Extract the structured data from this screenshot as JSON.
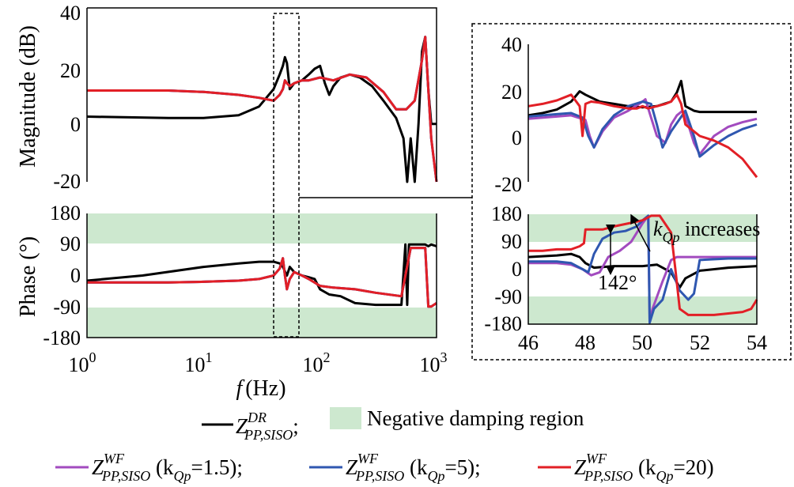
{
  "colors": {
    "dr": "#000000",
    "wf_1_5": "#a24bbf",
    "wf_5": "#2f57b0",
    "wf_20": "#e21f26",
    "negative_damping": "#cde8cf"
  },
  "labels": {
    "mag_ylabel": "Magnitude (dB)",
    "phase_ylabel": "Phase (°)",
    "xlabel_f": "f",
    "xlabel_unit": "(Hz)",
    "arrow_text_k": "k",
    "arrow_text_sub": "Qp",
    "arrow_text_rest": " increases",
    "phase_jump": "142°"
  },
  "ticks": {
    "mag_y": [
      "40",
      "20",
      "0",
      "-20"
    ],
    "phase_y": [
      "180",
      "90",
      "0",
      "-90",
      "-180"
    ],
    "x_main": [
      {
        "base": "10",
        "exp": "0"
      },
      {
        "base": "10",
        "exp": "1"
      },
      {
        "base": "10",
        "exp": "2"
      },
      {
        "base": "10",
        "exp": "3"
      }
    ],
    "x_zoom": [
      "46",
      "48",
      "50",
      "52",
      "54"
    ]
  },
  "legend": {
    "dr": {
      "main": "Z",
      "sup": "DR",
      "sub": "PP,SISO",
      "after": ";"
    },
    "region": "Negative damping region",
    "wf": [
      {
        "main": "Z",
        "sup": "WF",
        "sub": "PP,SISO",
        "p1": " (k",
        "psub": "Qp",
        "p2": "=1.5);"
      },
      {
        "main": "Z",
        "sup": "WF",
        "sub": "PP,SISO",
        "p1": " (k",
        "psub": "Qp",
        "p2": "=5);"
      },
      {
        "main": "Z",
        "sup": "WF",
        "sub": "PP,SISO",
        "p1": " (k",
        "psub": "Qp",
        "p2": "=20)"
      }
    ]
  },
  "chart_data": [
    {
      "type": "line",
      "panel": "magnitude",
      "xscale": "log",
      "xlim": [
        1,
        1000
      ],
      "ylim": [
        -20,
        40
      ],
      "ylabel": "Magnitude (dB)",
      "series": [
        {
          "key": "dr",
          "x": [
            1,
            5,
            10,
            20,
            30,
            40,
            45,
            48,
            50,
            52,
            55,
            60,
            70,
            80,
            90,
            100,
            110,
            120,
            130,
            150,
            180,
            220,
            280,
            350,
            450,
            520,
            560,
            600,
            650,
            700,
            750,
            800,
            850,
            900,
            1000
          ],
          "y": [
            2.5,
            2,
            2,
            3,
            6,
            12,
            17,
            20,
            23,
            21,
            12,
            14,
            15,
            17,
            19,
            20,
            14,
            10,
            13,
            16,
            17,
            16,
            13,
            8,
            2,
            -5,
            -20,
            -5,
            -20,
            0,
            25,
            30,
            12,
            0,
            0
          ]
        },
        {
          "key": "wf_1_5",
          "x": [
            1,
            5,
            10,
            20,
            30,
            40,
            45,
            48,
            50,
            52,
            55,
            60,
            70,
            80,
            100,
            130,
            180,
            250,
            350,
            450,
            550,
            650,
            750,
            800,
            850,
            900,
            1000
          ],
          "y": [
            11.5,
            11.5,
            11,
            10,
            9,
            8,
            10,
            12,
            15,
            14,
            13,
            14,
            15,
            15,
            16,
            15,
            17,
            16,
            11,
            5,
            5,
            8,
            22,
            30,
            12,
            -5,
            -20
          ]
        },
        {
          "key": "wf_5",
          "x": [
            1,
            5,
            10,
            20,
            30,
            40,
            45,
            48,
            50,
            52,
            55,
            60,
            70,
            80,
            100,
            130,
            180,
            250,
            350,
            450,
            550,
            650,
            750,
            800,
            850,
            900,
            1000
          ],
          "y": [
            11.5,
            11.5,
            11,
            10,
            9,
            8,
            10,
            12,
            15,
            14,
            13,
            14,
            15,
            15,
            16,
            15,
            17,
            16,
            11,
            5,
            5,
            8,
            22,
            30,
            12,
            -5,
            -20
          ]
        },
        {
          "key": "wf_20",
          "x": [
            1,
            5,
            10,
            20,
            30,
            40,
            45,
            48,
            50,
            52,
            55,
            60,
            70,
            80,
            100,
            130,
            180,
            250,
            350,
            450,
            550,
            650,
            750,
            800,
            850,
            900,
            1000
          ],
          "y": [
            11.5,
            11.5,
            11,
            10,
            9,
            8,
            10,
            12,
            15,
            14,
            13,
            14,
            15,
            15,
            16,
            15,
            17,
            16,
            11,
            5,
            5,
            8,
            22,
            30,
            12,
            -5,
            -20
          ]
        }
      ]
    },
    {
      "type": "line",
      "panel": "phase",
      "xscale": "log",
      "xlim": [
        1,
        1000
      ],
      "ylim": [
        -180,
        180
      ],
      "ylabel": "Phase (°)",
      "shaded_regions_y": [
        [
          90,
          180
        ],
        [
          -180,
          -90
        ]
      ],
      "series": [
        {
          "key": "dr",
          "x": [
            1,
            3,
            10,
            20,
            30,
            40,
            45,
            48,
            52,
            55,
            60,
            70,
            80,
            90,
            100,
            120,
            150,
            200,
            300,
            400,
            500,
            540,
            560,
            580,
            600,
            700,
            800,
            850,
            900,
            1000
          ],
          "y": [
            -15,
            0,
            25,
            35,
            40,
            40,
            35,
            25,
            0,
            25,
            10,
            0,
            -5,
            -10,
            -40,
            -55,
            -60,
            -80,
            -85,
            -85,
            -85,
            90,
            -85,
            90,
            90,
            90,
            90,
            85,
            90,
            85
          ]
        },
        {
          "key": "wf_1_5",
          "x": [
            1,
            5,
            10,
            20,
            30,
            40,
            45,
            48,
            50,
            52,
            55,
            60,
            70,
            80,
            100,
            130,
            200,
            300,
            500,
            600,
            650,
            700,
            800,
            850,
            900,
            1000
          ],
          "y": [
            -20,
            -20,
            -18,
            -15,
            -10,
            0,
            20,
            50,
            0,
            -40,
            -10,
            10,
            0,
            -10,
            -30,
            -35,
            -40,
            -50,
            -60,
            80,
            80,
            80,
            80,
            -90,
            -90,
            -80
          ]
        },
        {
          "key": "wf_5",
          "x": [
            1,
            5,
            10,
            20,
            30,
            40,
            45,
            48,
            50,
            52,
            55,
            60,
            70,
            80,
            100,
            130,
            200,
            300,
            500,
            600,
            650,
            700,
            800,
            850,
            900,
            1000
          ],
          "y": [
            -20,
            -20,
            -18,
            -15,
            -10,
            0,
            20,
            50,
            0,
            -40,
            -10,
            10,
            0,
            -10,
            -30,
            -35,
            -40,
            -50,
            -60,
            80,
            80,
            80,
            80,
            -90,
            -90,
            -80
          ]
        },
        {
          "key": "wf_20",
          "x": [
            1,
            5,
            10,
            20,
            30,
            40,
            45,
            48,
            50,
            52,
            55,
            60,
            70,
            80,
            100,
            130,
            200,
            300,
            500,
            600,
            650,
            700,
            800,
            850,
            900,
            1000
          ],
          "y": [
            -20,
            -20,
            -18,
            -15,
            -10,
            0,
            20,
            50,
            0,
            -40,
            -10,
            10,
            0,
            -10,
            -30,
            -35,
            -40,
            -50,
            -60,
            80,
            80,
            80,
            80,
            -90,
            -90,
            -80
          ]
        }
      ]
    },
    {
      "type": "line",
      "panel": "zoom-magnitude",
      "xlim": [
        46,
        54
      ],
      "ylim": [
        -20,
        40
      ],
      "series": [
        {
          "key": "dr",
          "x": [
            46,
            46.5,
            47,
            47.5,
            47.8,
            48,
            48.5,
            49,
            49.5,
            50,
            50.5,
            51,
            51.2,
            51.35,
            51.5,
            51.8,
            52,
            53,
            54
          ],
          "y": [
            9,
            10,
            11.5,
            15,
            19.5,
            18,
            15,
            14,
            13,
            12.5,
            13,
            15,
            19,
            24,
            13,
            11,
            10.5,
            10.5,
            10.5
          ]
        },
        {
          "key": "wf_1_5",
          "x": [
            46,
            47,
            47.5,
            48,
            48.15,
            48.3,
            48.6,
            49,
            49.5,
            50,
            50.1,
            50.3,
            50.5,
            50.8,
            51,
            51.2,
            51.4,
            51.6,
            51.8,
            52,
            52.5,
            53,
            53.5,
            54
          ],
          "y": [
            7.5,
            8.5,
            9,
            7,
            0,
            -5,
            2,
            8,
            11,
            15,
            16,
            8,
            0,
            -3,
            5,
            9,
            11,
            5,
            -3,
            -8,
            0,
            4,
            6,
            7.5
          ]
        },
        {
          "key": "wf_5",
          "x": [
            46,
            47,
            47.5,
            47.9,
            48.1,
            48.3,
            48.6,
            49,
            49.5,
            50,
            50.3,
            50.5,
            50.7,
            51,
            51.5,
            51.8,
            52,
            52.5,
            53,
            53.5,
            54
          ],
          "y": [
            8.5,
            9.5,
            10,
            8,
            0,
            -5,
            3,
            9,
            13,
            15,
            14,
            5,
            -5,
            2,
            11,
            0,
            -9,
            -4,
            0,
            3,
            5
          ]
        },
        {
          "key": "wf_20",
          "x": [
            46,
            46.5,
            47,
            47.5,
            47.8,
            47.9,
            48.0,
            48.2,
            48.5,
            49,
            49.5,
            49.8,
            50,
            50.2,
            50.5,
            50.8,
            51,
            51.2,
            51.35,
            51.5,
            51.8,
            52,
            52.5,
            53,
            53.5,
            54
          ],
          "y": [
            13,
            14,
            15.5,
            18,
            13,
            0,
            14,
            15,
            14.5,
            13,
            12,
            12,
            13,
            12,
            13,
            14,
            15,
            18,
            14,
            5,
            2,
            0,
            -2,
            -5,
            -10,
            -18
          ]
        }
      ]
    },
    {
      "type": "line",
      "panel": "zoom-phase",
      "xlim": [
        46,
        54
      ],
      "ylim": [
        -180,
        180
      ],
      "shaded_regions_y": [
        [
          90,
          180
        ],
        [
          -180,
          -90
        ]
      ],
      "series": [
        {
          "key": "dr",
          "x": [
            46,
            47,
            47.5,
            47.8,
            48,
            48.3,
            49,
            50,
            50.5,
            51,
            51.3,
            51.5,
            52,
            53,
            54
          ],
          "y": [
            40,
            45,
            50,
            40,
            20,
            5,
            10,
            10,
            15,
            -10,
            -60,
            -30,
            -5,
            5,
            10
          ]
        },
        {
          "key": "wf_1_5",
          "x": [
            46,
            47,
            47.5,
            47.9,
            48.2,
            48.5,
            48.8,
            49.2,
            49.6,
            50,
            50.2,
            50.25,
            50.35,
            50.7,
            51,
            51.2,
            51.4,
            51.7,
            52,
            53,
            54
          ],
          "y": [
            20,
            20,
            15,
            0,
            -20,
            -10,
            40,
            60,
            90,
            150,
            175,
            -170,
            -130,
            -40,
            30,
            40,
            40,
            40,
            40,
            40,
            40
          ]
        },
        {
          "key": "wf_5",
          "x": [
            46,
            47,
            47.5,
            47.9,
            48.1,
            48.3,
            48.6,
            49,
            49.4,
            49.8,
            50,
            50.2,
            50.25,
            50.4,
            50.7,
            51,
            51.3,
            51.6,
            51.8,
            52,
            53,
            54
          ],
          "y": [
            25,
            25,
            20,
            0,
            -10,
            50,
            100,
            120,
            125,
            140,
            160,
            175,
            -175,
            -130,
            -100,
            0,
            -70,
            -100,
            -80,
            30,
            35,
            35
          ]
        },
        {
          "key": "wf_20",
          "x": [
            46,
            46.5,
            47,
            47.5,
            47.8,
            47.95,
            48,
            48.3,
            48.6,
            49,
            49.5,
            50,
            50.3,
            50.6,
            51,
            51.15,
            51.3,
            51.6,
            52,
            52.5,
            53,
            53.5,
            53.8,
            54
          ],
          "y": [
            60,
            60,
            65,
            65,
            75,
            85,
            130,
            130,
            130,
            140,
            150,
            160,
            175,
            175,
            120,
            0,
            -130,
            -150,
            -150,
            -150,
            -145,
            -140,
            -130,
            -100
          ]
        }
      ]
    }
  ]
}
